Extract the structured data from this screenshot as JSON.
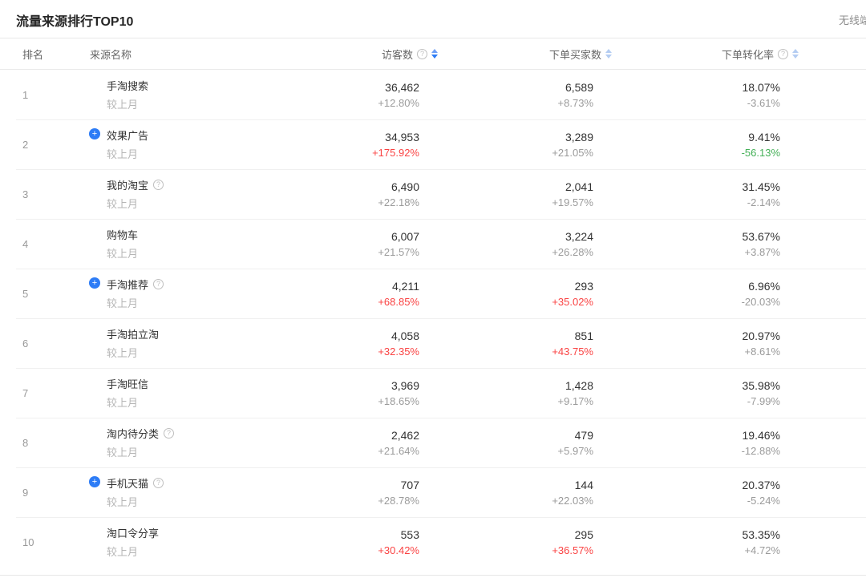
{
  "widget": {
    "title": "流量来源排行TOP10",
    "top_right_label": "无线端"
  },
  "columns": {
    "rank": "排名",
    "source": "来源名称",
    "visitors": "访客数",
    "buyers": "下单买家数",
    "conversion": "下单转化率"
  },
  "compare_label": "较上月",
  "colors": {
    "accent_blue": "#2d7cf6",
    "change_red": "#fa4343",
    "change_green": "#45b058"
  },
  "rows": [
    {
      "rank": "1",
      "name": "手淘搜索",
      "plus_icon": false,
      "help_icon": false,
      "visitors": "36,462",
      "visitors_change": "+12.80%",
      "visitors_change_color": "muted",
      "buyers": "6,589",
      "buyers_change": "+8.73%",
      "buyers_change_color": "muted",
      "conversion": "18.07%",
      "conversion_change": "-3.61%",
      "conversion_change_color": "muted"
    },
    {
      "rank": "2",
      "name": "效果广告",
      "plus_icon": true,
      "help_icon": false,
      "visitors": "34,953",
      "visitors_change": "+175.92%",
      "visitors_change_color": "red",
      "buyers": "3,289",
      "buyers_change": "+21.05%",
      "buyers_change_color": "muted",
      "conversion": "9.41%",
      "conversion_change": "-56.13%",
      "conversion_change_color": "green"
    },
    {
      "rank": "3",
      "name": "我的淘宝",
      "plus_icon": false,
      "help_icon": true,
      "visitors": "6,490",
      "visitors_change": "+22.18%",
      "visitors_change_color": "muted",
      "buyers": "2,041",
      "buyers_change": "+19.57%",
      "buyers_change_color": "muted",
      "conversion": "31.45%",
      "conversion_change": "-2.14%",
      "conversion_change_color": "muted"
    },
    {
      "rank": "4",
      "name": "购物车",
      "plus_icon": false,
      "help_icon": false,
      "visitors": "6,007",
      "visitors_change": "+21.57%",
      "visitors_change_color": "muted",
      "buyers": "3,224",
      "buyers_change": "+26.28%",
      "buyers_change_color": "muted",
      "conversion": "53.67%",
      "conversion_change": "+3.87%",
      "conversion_change_color": "muted"
    },
    {
      "rank": "5",
      "name": "手淘推荐",
      "plus_icon": true,
      "help_icon": true,
      "visitors": "4,211",
      "visitors_change": "+68.85%",
      "visitors_change_color": "red",
      "buyers": "293",
      "buyers_change": "+35.02%",
      "buyers_change_color": "red",
      "conversion": "6.96%",
      "conversion_change": "-20.03%",
      "conversion_change_color": "muted"
    },
    {
      "rank": "6",
      "name": "手淘拍立淘",
      "plus_icon": false,
      "help_icon": false,
      "visitors": "4,058",
      "visitors_change": "+32.35%",
      "visitors_change_color": "red",
      "buyers": "851",
      "buyers_change": "+43.75%",
      "buyers_change_color": "red",
      "conversion": "20.97%",
      "conversion_change": "+8.61%",
      "conversion_change_color": "muted"
    },
    {
      "rank": "7",
      "name": "手淘旺信",
      "plus_icon": false,
      "help_icon": false,
      "visitors": "3,969",
      "visitors_change": "+18.65%",
      "visitors_change_color": "muted",
      "buyers": "1,428",
      "buyers_change": "+9.17%",
      "buyers_change_color": "muted",
      "conversion": "35.98%",
      "conversion_change": "-7.99%",
      "conversion_change_color": "muted"
    },
    {
      "rank": "8",
      "name": "淘内待分类",
      "plus_icon": false,
      "help_icon": true,
      "visitors": "2,462",
      "visitors_change": "+21.64%",
      "visitors_change_color": "muted",
      "buyers": "479",
      "buyers_change": "+5.97%",
      "buyers_change_color": "muted",
      "conversion": "19.46%",
      "conversion_change": "-12.88%",
      "conversion_change_color": "muted"
    },
    {
      "rank": "9",
      "name": "手机天猫",
      "plus_icon": true,
      "help_icon": true,
      "visitors": "707",
      "visitors_change": "+28.78%",
      "visitors_change_color": "muted",
      "buyers": "144",
      "buyers_change": "+22.03%",
      "buyers_change_color": "muted",
      "conversion": "20.37%",
      "conversion_change": "-5.24%",
      "conversion_change_color": "muted"
    },
    {
      "rank": "10",
      "name": "淘口令分享",
      "plus_icon": false,
      "help_icon": false,
      "visitors": "553",
      "visitors_change": "+30.42%",
      "visitors_change_color": "red",
      "buyers": "295",
      "buyers_change": "+36.57%",
      "buyers_change_color": "red",
      "conversion": "53.35%",
      "conversion_change": "+4.72%",
      "conversion_change_color": "muted"
    }
  ],
  "icons": {
    "plus_icon_glyph": "+",
    "help_icon_glyph": "?"
  }
}
